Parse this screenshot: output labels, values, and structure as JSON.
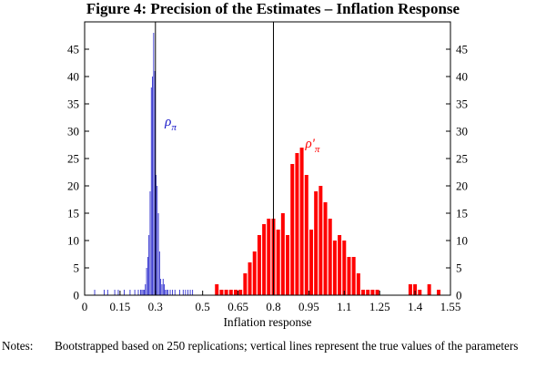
{
  "figure": {
    "title": "Figure 4: Precision of the Estimates – Inflation Response",
    "notes_label": "Notes:",
    "notes_text": "Bootstrapped based on 250 replications; vertical lines represent the true values of the parameters"
  },
  "chart_data": {
    "type": "bar",
    "title": "Figure 4: Precision of the Estimates – Inflation Response",
    "xlabel": "Inflation response",
    "ylabel": "",
    "xlim": [
      0,
      1.55
    ],
    "ylim": [
      0,
      50
    ],
    "x_ticks": [
      0,
      0.15,
      0.3,
      0.5,
      0.65,
      0.8,
      0.95,
      1.1,
      1.25,
      1.4,
      1.55
    ],
    "x_tick_labels": [
      "0",
      "0.15",
      "0.3",
      "0.5",
      "0.65",
      "0.8",
      "0.95",
      "1.1",
      "1.25",
      "1.4",
      "1.55"
    ],
    "y_ticks": [
      0,
      5,
      10,
      15,
      20,
      25,
      30,
      35,
      40,
      45
    ],
    "y_tick_labels": [
      "0",
      "5",
      "10",
      "15",
      "20",
      "25",
      "30",
      "35",
      "40",
      "45"
    ],
    "grid": false,
    "true_values": [
      0.3,
      0.8
    ],
    "series": [
      {
        "name": "ρπ",
        "label_main": "ρ",
        "label_sub": "π",
        "label_position": [
          0.34,
          31
        ],
        "color": "#1515c8",
        "bin_width": 0.005,
        "x": [
          0.04,
          0.08,
          0.095,
          0.125,
          0.14,
          0.165,
          0.19,
          0.21,
          0.225,
          0.235,
          0.24,
          0.245,
          0.25,
          0.255,
          0.26,
          0.265,
          0.27,
          0.275,
          0.28,
          0.285,
          0.29,
          0.295,
          0.3,
          0.305,
          0.31,
          0.315,
          0.32,
          0.325,
          0.33,
          0.335,
          0.34,
          0.345,
          0.35,
          0.36,
          0.37,
          0.38,
          0.4,
          0.415,
          0.425,
          0.435,
          0.445,
          0.455
        ],
        "values": [
          1,
          1,
          1,
          1,
          1,
          1,
          1,
          1,
          1,
          1,
          1,
          1,
          1,
          2,
          5,
          7,
          11,
          19,
          38,
          40,
          48,
          41,
          22,
          20,
          15,
          8,
          3,
          2,
          3,
          2,
          1,
          1,
          1,
          1,
          1,
          1,
          1,
          1,
          1,
          1,
          1,
          1
        ]
      },
      {
        "name": "ρ'π",
        "label_main": "ρ'",
        "label_sub": "π",
        "label_position": [
          0.935,
          27
        ],
        "color": "#ff0000",
        "bin_width": 0.02,
        "x": [
          0.55,
          0.57,
          0.59,
          0.61,
          0.63,
          0.65,
          0.67,
          0.69,
          0.71,
          0.73,
          0.75,
          0.77,
          0.79,
          0.81,
          0.83,
          0.85,
          0.87,
          0.89,
          0.91,
          0.93,
          0.95,
          0.97,
          0.99,
          1.01,
          1.03,
          1.05,
          1.07,
          1.09,
          1.11,
          1.13,
          1.15,
          1.17,
          1.19,
          1.21,
          1.23,
          1.25,
          1.27,
          1.29,
          1.31,
          1.33,
          1.35,
          1.37,
          1.39,
          1.41,
          1.43,
          1.45,
          1.47,
          1.49,
          1.51
        ],
        "values": [
          2,
          1,
          1,
          1,
          1,
          1,
          4,
          6,
          8,
          11,
          13,
          14,
          14,
          12,
          15,
          11,
          24,
          26,
          27,
          22,
          12,
          19,
          20,
          17,
          14,
          10,
          11,
          10,
          7,
          7,
          4,
          1,
          1,
          1,
          1,
          0,
          0,
          0,
          0,
          0,
          0,
          2,
          2,
          1,
          0,
          2,
          0,
          1,
          0
        ]
      }
    ]
  }
}
